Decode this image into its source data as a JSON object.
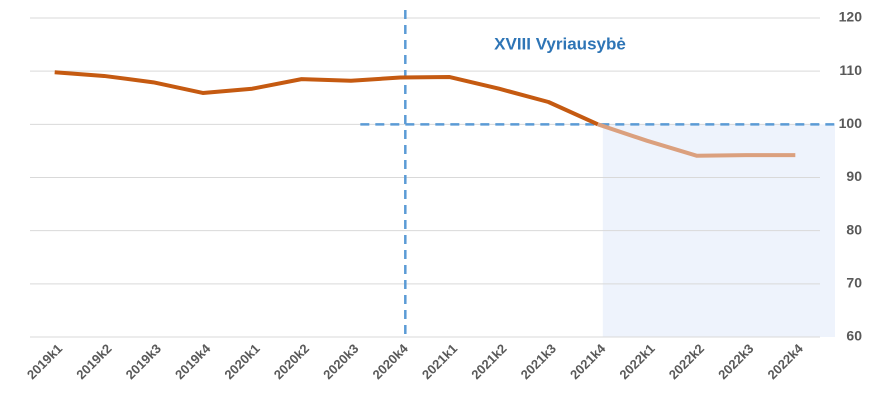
{
  "chart_data": {
    "type": "line",
    "annotation": "XVIII Vyriausybė",
    "categories": [
      "2019k1",
      "2019k2",
      "2019k3",
      "2019k4",
      "2020k1",
      "2020k2",
      "2020k3",
      "2020k4",
      "2021k1",
      "2021k2",
      "2021k3",
      "2021k4",
      "2022k1",
      "2022k2",
      "2022k3",
      "2022k4"
    ],
    "series": [
      {
        "color": "#c55a11",
        "values": [
          109.8,
          109.1,
          107.9,
          105.9,
          106.7,
          108.5,
          108.2,
          108.8,
          108.9,
          106.7,
          104.2,
          100.0,
          null,
          null,
          null,
          null
        ]
      },
      {
        "color": "#dba07e",
        "values": [
          null,
          null,
          null,
          null,
          null,
          null,
          null,
          null,
          null,
          null,
          null,
          100.0,
          96.9,
          94.1,
          94.2,
          94.2
        ]
      }
    ],
    "ylim": [
      60,
      120
    ],
    "yticks": [
      60,
      70,
      80,
      90,
      100,
      110,
      120
    ],
    "grid": true,
    "vline_index": 7,
    "hline": 100,
    "shade_from_index": 11
  }
}
